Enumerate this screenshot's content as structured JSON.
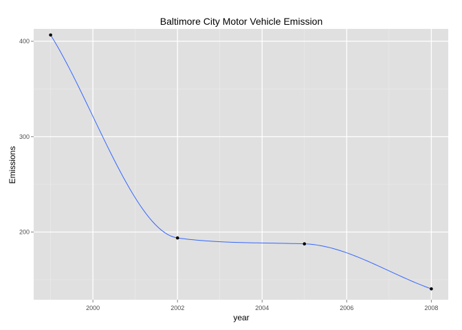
{
  "chart_data": {
    "type": "line",
    "title": "Baltimore City Motor Vehicle Emission",
    "xlabel": "year",
    "ylabel": "Emissions",
    "x": [
      1999,
      2002,
      2005,
      2008
    ],
    "series": [
      {
        "values": [
          406.6,
          193.8,
          187.6,
          140.4
        ]
      }
    ],
    "xlim": [
      1998.6,
      2008.4
    ],
    "ylim": [
      129,
      413
    ],
    "xticks": [
      2000,
      2002,
      2004,
      2006,
      2008
    ],
    "yticks": [
      200,
      300,
      400
    ],
    "xtick_labels": [
      "2000",
      "2002",
      "2004",
      "2006",
      "2008"
    ],
    "ytick_labels": [
      "200",
      "300",
      "400"
    ],
    "grid": true,
    "legend": "none",
    "colors": {
      "panel": "#e0e0e0",
      "grid_major": "#ffffff",
      "grid_minor": "#ededed",
      "line": "#3366ff",
      "point": "#000000",
      "tick": "#7f7f7f"
    }
  }
}
